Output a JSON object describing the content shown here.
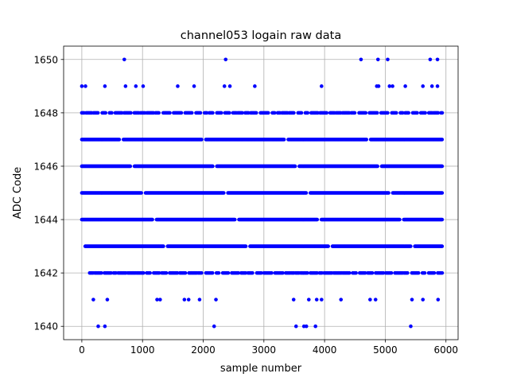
{
  "chart_data": {
    "type": "scatter",
    "title": "channel053 logain raw data",
    "xlabel": "sample number",
    "ylabel": "ADC Code",
    "xlim": [
      -300,
      6200
    ],
    "ylim": [
      1639.5,
      1650.5
    ],
    "xticks": [
      0,
      1000,
      2000,
      3000,
      4000,
      5000,
      6000
    ],
    "yticks": [
      1640,
      1642,
      1644,
      1646,
      1648,
      1650
    ],
    "xtick_labels": [
      "0",
      "1000",
      "2000",
      "3000",
      "4000",
      "5000",
      "6000"
    ],
    "ytick_labels": [
      "1640",
      "1642",
      "1644",
      "1646",
      "1648",
      "1650"
    ],
    "grid": true,
    "n_samples": 5940,
    "marker_color": "#0000ff",
    "series": [
      {
        "dense_levels": [
          1643,
          1644,
          1645,
          1646,
          1647
        ],
        "semi_dense_levels": [
          1642,
          1648
        ],
        "sparse_points": [
          {
            "x": 700,
            "y": 1650
          },
          {
            "x": 2370,
            "y": 1650
          },
          {
            "x": 4600,
            "y": 1650
          },
          {
            "x": 4880,
            "y": 1650
          },
          {
            "x": 5040,
            "y": 1650
          },
          {
            "x": 5740,
            "y": 1650
          },
          {
            "x": 5860,
            "y": 1650
          },
          {
            "x": 0,
            "y": 1649
          },
          {
            "x": 60,
            "y": 1649
          },
          {
            "x": 380,
            "y": 1649
          },
          {
            "x": 720,
            "y": 1649
          },
          {
            "x": 890,
            "y": 1649
          },
          {
            "x": 1010,
            "y": 1649
          },
          {
            "x": 1580,
            "y": 1649
          },
          {
            "x": 1850,
            "y": 1649
          },
          {
            "x": 2350,
            "y": 1649
          },
          {
            "x": 2440,
            "y": 1649
          },
          {
            "x": 2850,
            "y": 1649
          },
          {
            "x": 3950,
            "y": 1649
          },
          {
            "x": 4860,
            "y": 1649
          },
          {
            "x": 4890,
            "y": 1649
          },
          {
            "x": 5070,
            "y": 1649
          },
          {
            "x": 5120,
            "y": 1649
          },
          {
            "x": 5330,
            "y": 1649
          },
          {
            "x": 5620,
            "y": 1649
          },
          {
            "x": 5770,
            "y": 1649
          },
          {
            "x": 5860,
            "y": 1649
          },
          {
            "x": 190,
            "y": 1641
          },
          {
            "x": 420,
            "y": 1641
          },
          {
            "x": 1240,
            "y": 1641
          },
          {
            "x": 1290,
            "y": 1641
          },
          {
            "x": 1690,
            "y": 1641
          },
          {
            "x": 1760,
            "y": 1641
          },
          {
            "x": 1940,
            "y": 1641
          },
          {
            "x": 2210,
            "y": 1641
          },
          {
            "x": 3490,
            "y": 1641
          },
          {
            "x": 3740,
            "y": 1641
          },
          {
            "x": 3870,
            "y": 1641
          },
          {
            "x": 3950,
            "y": 1641
          },
          {
            "x": 4270,
            "y": 1641
          },
          {
            "x": 4750,
            "y": 1641
          },
          {
            "x": 4840,
            "y": 1641
          },
          {
            "x": 5440,
            "y": 1641
          },
          {
            "x": 5620,
            "y": 1641
          },
          {
            "x": 5870,
            "y": 1641
          },
          {
            "x": 270,
            "y": 1640
          },
          {
            "x": 380,
            "y": 1640
          },
          {
            "x": 2180,
            "y": 1640
          },
          {
            "x": 3530,
            "y": 1640
          },
          {
            "x": 3660,
            "y": 1640
          },
          {
            "x": 3700,
            "y": 1640
          },
          {
            "x": 3850,
            "y": 1640
          },
          {
            "x": 5420,
            "y": 1640
          }
        ]
      }
    ]
  }
}
